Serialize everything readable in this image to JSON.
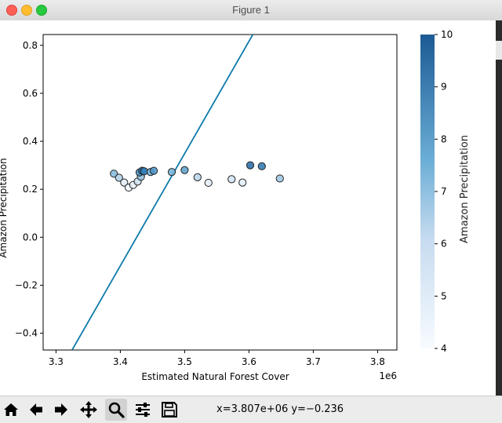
{
  "window": {
    "title": "Figure 1"
  },
  "chart_data": {
    "type": "scatter",
    "xlabel": "Estimated Natural Forest Cover",
    "ylabel": "Amazon Precipitation",
    "x_offset_label": "1e6",
    "xlim": [
      3.28,
      3.83
    ],
    "ylim": [
      -0.47,
      0.845
    ],
    "x_ticks": [
      3.3,
      3.4,
      3.5,
      3.6,
      3.7,
      3.8
    ],
    "x_tick_labels": [
      "3.3",
      "3.4",
      "3.5",
      "3.6",
      "3.7",
      "3.8"
    ],
    "y_ticks": [
      0.8,
      0.6,
      0.4,
      0.2,
      0.0,
      -0.2,
      -0.4
    ],
    "y_tick_labels": [
      "0.8",
      "0.6",
      "0.4",
      "0.2",
      "0.0",
      "−0.2",
      "−0.4"
    ],
    "points": [
      {
        "x": 3.39,
        "y": 0.265,
        "c": 7.2
      },
      {
        "x": 3.398,
        "y": 0.248,
        "c": 6.5
      },
      {
        "x": 3.406,
        "y": 0.228,
        "c": 5.0
      },
      {
        "x": 3.413,
        "y": 0.207,
        "c": 4.3
      },
      {
        "x": 3.42,
        "y": 0.218,
        "c": 4.6
      },
      {
        "x": 3.427,
        "y": 0.232,
        "c": 5.8
      },
      {
        "x": 3.432,
        "y": 0.252,
        "c": 7.0
      },
      {
        "x": 3.43,
        "y": 0.27,
        "c": 8.3
      },
      {
        "x": 3.434,
        "y": 0.277,
        "c": 9.3
      },
      {
        "x": 3.437,
        "y": 0.275,
        "c": 8.8
      },
      {
        "x": 3.447,
        "y": 0.272,
        "c": 7.7
      },
      {
        "x": 3.452,
        "y": 0.277,
        "c": 8.2
      },
      {
        "x": 3.48,
        "y": 0.272,
        "c": 7.5
      },
      {
        "x": 3.5,
        "y": 0.28,
        "c": 8.0
      },
      {
        "x": 3.52,
        "y": 0.25,
        "c": 6.3
      },
      {
        "x": 3.537,
        "y": 0.227,
        "c": 4.8
      },
      {
        "x": 3.573,
        "y": 0.242,
        "c": 5.5
      },
      {
        "x": 3.59,
        "y": 0.228,
        "c": 4.9
      },
      {
        "x": 3.602,
        "y": 0.3,
        "c": 9.6
      },
      {
        "x": 3.62,
        "y": 0.296,
        "c": 9.2
      },
      {
        "x": 3.648,
        "y": 0.245,
        "c": 6.8
      }
    ],
    "line": {
      "x": [
        3.325,
        3.606
      ],
      "y": [
        -0.47,
        0.845
      ],
      "color": "#0f7bab"
    },
    "colorbar": {
      "label": "Amazon Precipitation",
      "min": 4,
      "max": 10,
      "ticks": [
        "4",
        "5",
        "6",
        "7",
        "8",
        "9",
        "10"
      ],
      "color_low": "#f7fbff",
      "color_high": "#1c5a94"
    },
    "grid": false
  },
  "toolbar": {
    "buttons": [
      {
        "name": "home-icon"
      },
      {
        "name": "back-arrow-icon"
      },
      {
        "name": "forward-arrow-icon"
      },
      {
        "name": "pan-move-icon"
      },
      {
        "name": "zoom-magnifier-icon",
        "active": true
      },
      {
        "name": "configure-subplots-icon"
      },
      {
        "name": "save-disk-icon"
      }
    ],
    "coords_text": "x=3.807e+06 y=−0.236"
  }
}
